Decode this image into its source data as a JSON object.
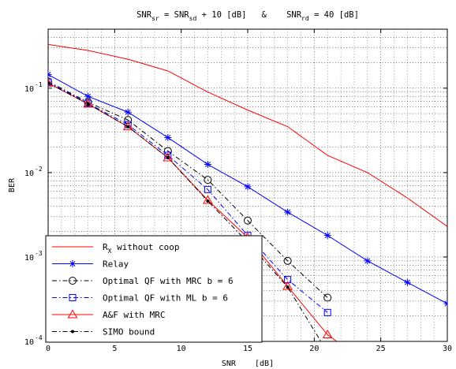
{
  "chart_data": {
    "type": "line",
    "title": {
      "a": "SNR",
      "a_sub": "sr",
      "b": " = SNR",
      "b_sub": "sd",
      "c": " + 10 [dB]   &    SNR",
      "c_sub": "rd",
      "d": " = 40 [dB]"
    },
    "xlabel": "SNR    [dB]",
    "ylabel": "BER",
    "x_ticks": [
      0,
      5,
      10,
      15,
      20,
      25,
      30
    ],
    "y_scale": "log",
    "y_ticks": [
      {
        "value": 0.0001,
        "label": "10",
        "exp": "-4"
      },
      {
        "value": 0.001,
        "label": "10",
        "exp": "-3"
      },
      {
        "value": 0.01,
        "label": "10",
        "exp": "-2"
      },
      {
        "value": 0.1,
        "label": "10",
        "exp": "-1"
      }
    ],
    "xlim": [
      0,
      30
    ],
    "ylim": [
      0.0001,
      0.5
    ],
    "grid": "dotted major and minor",
    "legend_position": "bottom-left",
    "series": [
      {
        "name": "R",
        "name_sub": "X",
        "name_rest": " without coop",
        "color": "#ff0000",
        "dash": "",
        "marker": "none",
        "x": [
          0,
          3,
          6,
          9,
          12,
          15,
          18,
          21,
          24,
          27,
          30
        ],
        "y": [
          0.33,
          0.28,
          0.22,
          0.16,
          0.09,
          0.055,
          0.035,
          0.016,
          0.01,
          0.005,
          0.0023
        ]
      },
      {
        "name": "Relay",
        "color": "#0000ff",
        "dash": "",
        "marker": "star",
        "x": [
          0,
          3,
          6,
          9,
          12,
          15,
          18,
          21,
          24,
          27,
          30
        ],
        "y": [
          0.145,
          0.08,
          0.052,
          0.026,
          0.0125,
          0.0068,
          0.0034,
          0.0018,
          0.0009,
          0.0005,
          0.00028
        ]
      },
      {
        "name": "Optimal QF with MRC b = 6",
        "color": "#000000",
        "dash": "6,3,1.5,3",
        "marker": "circle",
        "x": [
          0,
          3,
          6,
          9,
          12,
          15,
          18,
          21
        ],
        "y": [
          0.12,
          0.068,
          0.042,
          0.018,
          0.0082,
          0.0027,
          0.0009,
          0.00033
        ]
      },
      {
        "name": "Optimal QF with ML b = 6",
        "color": "#0000ff",
        "dash": "6,3,1.5,3",
        "marker": "square",
        "x": [
          0,
          3,
          6,
          9,
          12,
          15,
          18,
          21
        ],
        "y": [
          0.118,
          0.066,
          0.037,
          0.016,
          0.0063,
          0.0018,
          0.00054,
          0.00022
        ]
      },
      {
        "name": "A&F with MRC",
        "color": "#ff0000",
        "dash": "",
        "marker": "triangle",
        "x": [
          0,
          3,
          6,
          9,
          12,
          15,
          18,
          21,
          21.7
        ],
        "y": [
          0.115,
          0.065,
          0.035,
          0.015,
          0.0047,
          0.0017,
          0.00045,
          0.00012,
          0.0001
        ]
      },
      {
        "name": "SIMO bound",
        "color": "#000000",
        "dash": "6,3,1.5,3",
        "marker": "dot",
        "x": [
          0,
          3,
          6,
          9,
          12,
          15,
          18,
          20.5
        ],
        "y": [
          0.115,
          0.065,
          0.035,
          0.015,
          0.0046,
          0.0015,
          0.00044,
          0.0001
        ]
      }
    ]
  }
}
